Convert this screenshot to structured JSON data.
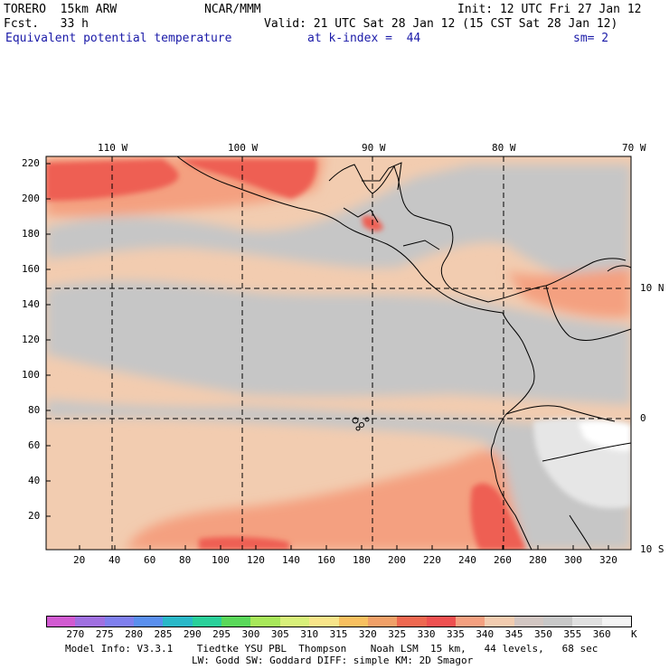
{
  "header": {
    "model": "TORERO  15km ARW",
    "center": "NCAR/MMM",
    "init": "Init: 12 UTC Fri 27 Jan 12",
    "fcst": "Fcst.   33 h",
    "valid": "Valid: 21 UTC Sat 28 Jan 12 (15 CST Sat 28 Jan 12)",
    "field": "Equivalent potential temperature",
    "level": "at k-index =  44",
    "smooth": "sm= 2"
  },
  "map": {
    "lon_labels": [
      "110 W",
      "100 W",
      "90 W",
      "80 W",
      "70 W"
    ],
    "lat_labels": [
      "10 N",
      "0",
      "10 S"
    ],
    "y_ticks": [
      "220",
      "200",
      "180",
      "160",
      "140",
      "120",
      "100",
      "80",
      "60",
      "40",
      "20"
    ],
    "x_ticks": [
      "20",
      "40",
      "60",
      "80",
      "100",
      "120",
      "140",
      "160",
      "180",
      "200",
      "220",
      "240",
      "260",
      "280",
      "300",
      "320"
    ],
    "colors": {
      "base_cool": "#c6c6c6",
      "base_warm": "#f2ccb0",
      "orange": "#f4a080",
      "red": "#ee5e52",
      "light": "#e6e6e6",
      "white": "#ffffff"
    }
  },
  "colorbar": {
    "labels": [
      "270",
      "275",
      "280",
      "285",
      "290",
      "295",
      "300",
      "305",
      "310",
      "315",
      "320",
      "325",
      "330",
      "335",
      "340",
      "345",
      "350",
      "355",
      "360"
    ],
    "unit": "K",
    "colors": [
      "#d15ad1",
      "#a070e0",
      "#7f7fee",
      "#5a8fee",
      "#2ab8c8",
      "#2ad09a",
      "#5ad85a",
      "#a8e85a",
      "#d8f07a",
      "#f8e58a",
      "#f8c060",
      "#f0a068",
      "#ee6850",
      "#ee5050",
      "#f4a080",
      "#f2ccb0",
      "#d2c6c2",
      "#c8c8c8",
      "#e0e0e0",
      "#f4f4f4"
    ]
  },
  "footer": {
    "line1": "Model Info: V3.3.1    Tiedtke YSU PBL  Thompson    Noah LSM  15 km,   44 levels,   68 sec",
    "line2": "LW: Godd SW: Goddard DIFF: simple KM: 2D Smagor"
  }
}
